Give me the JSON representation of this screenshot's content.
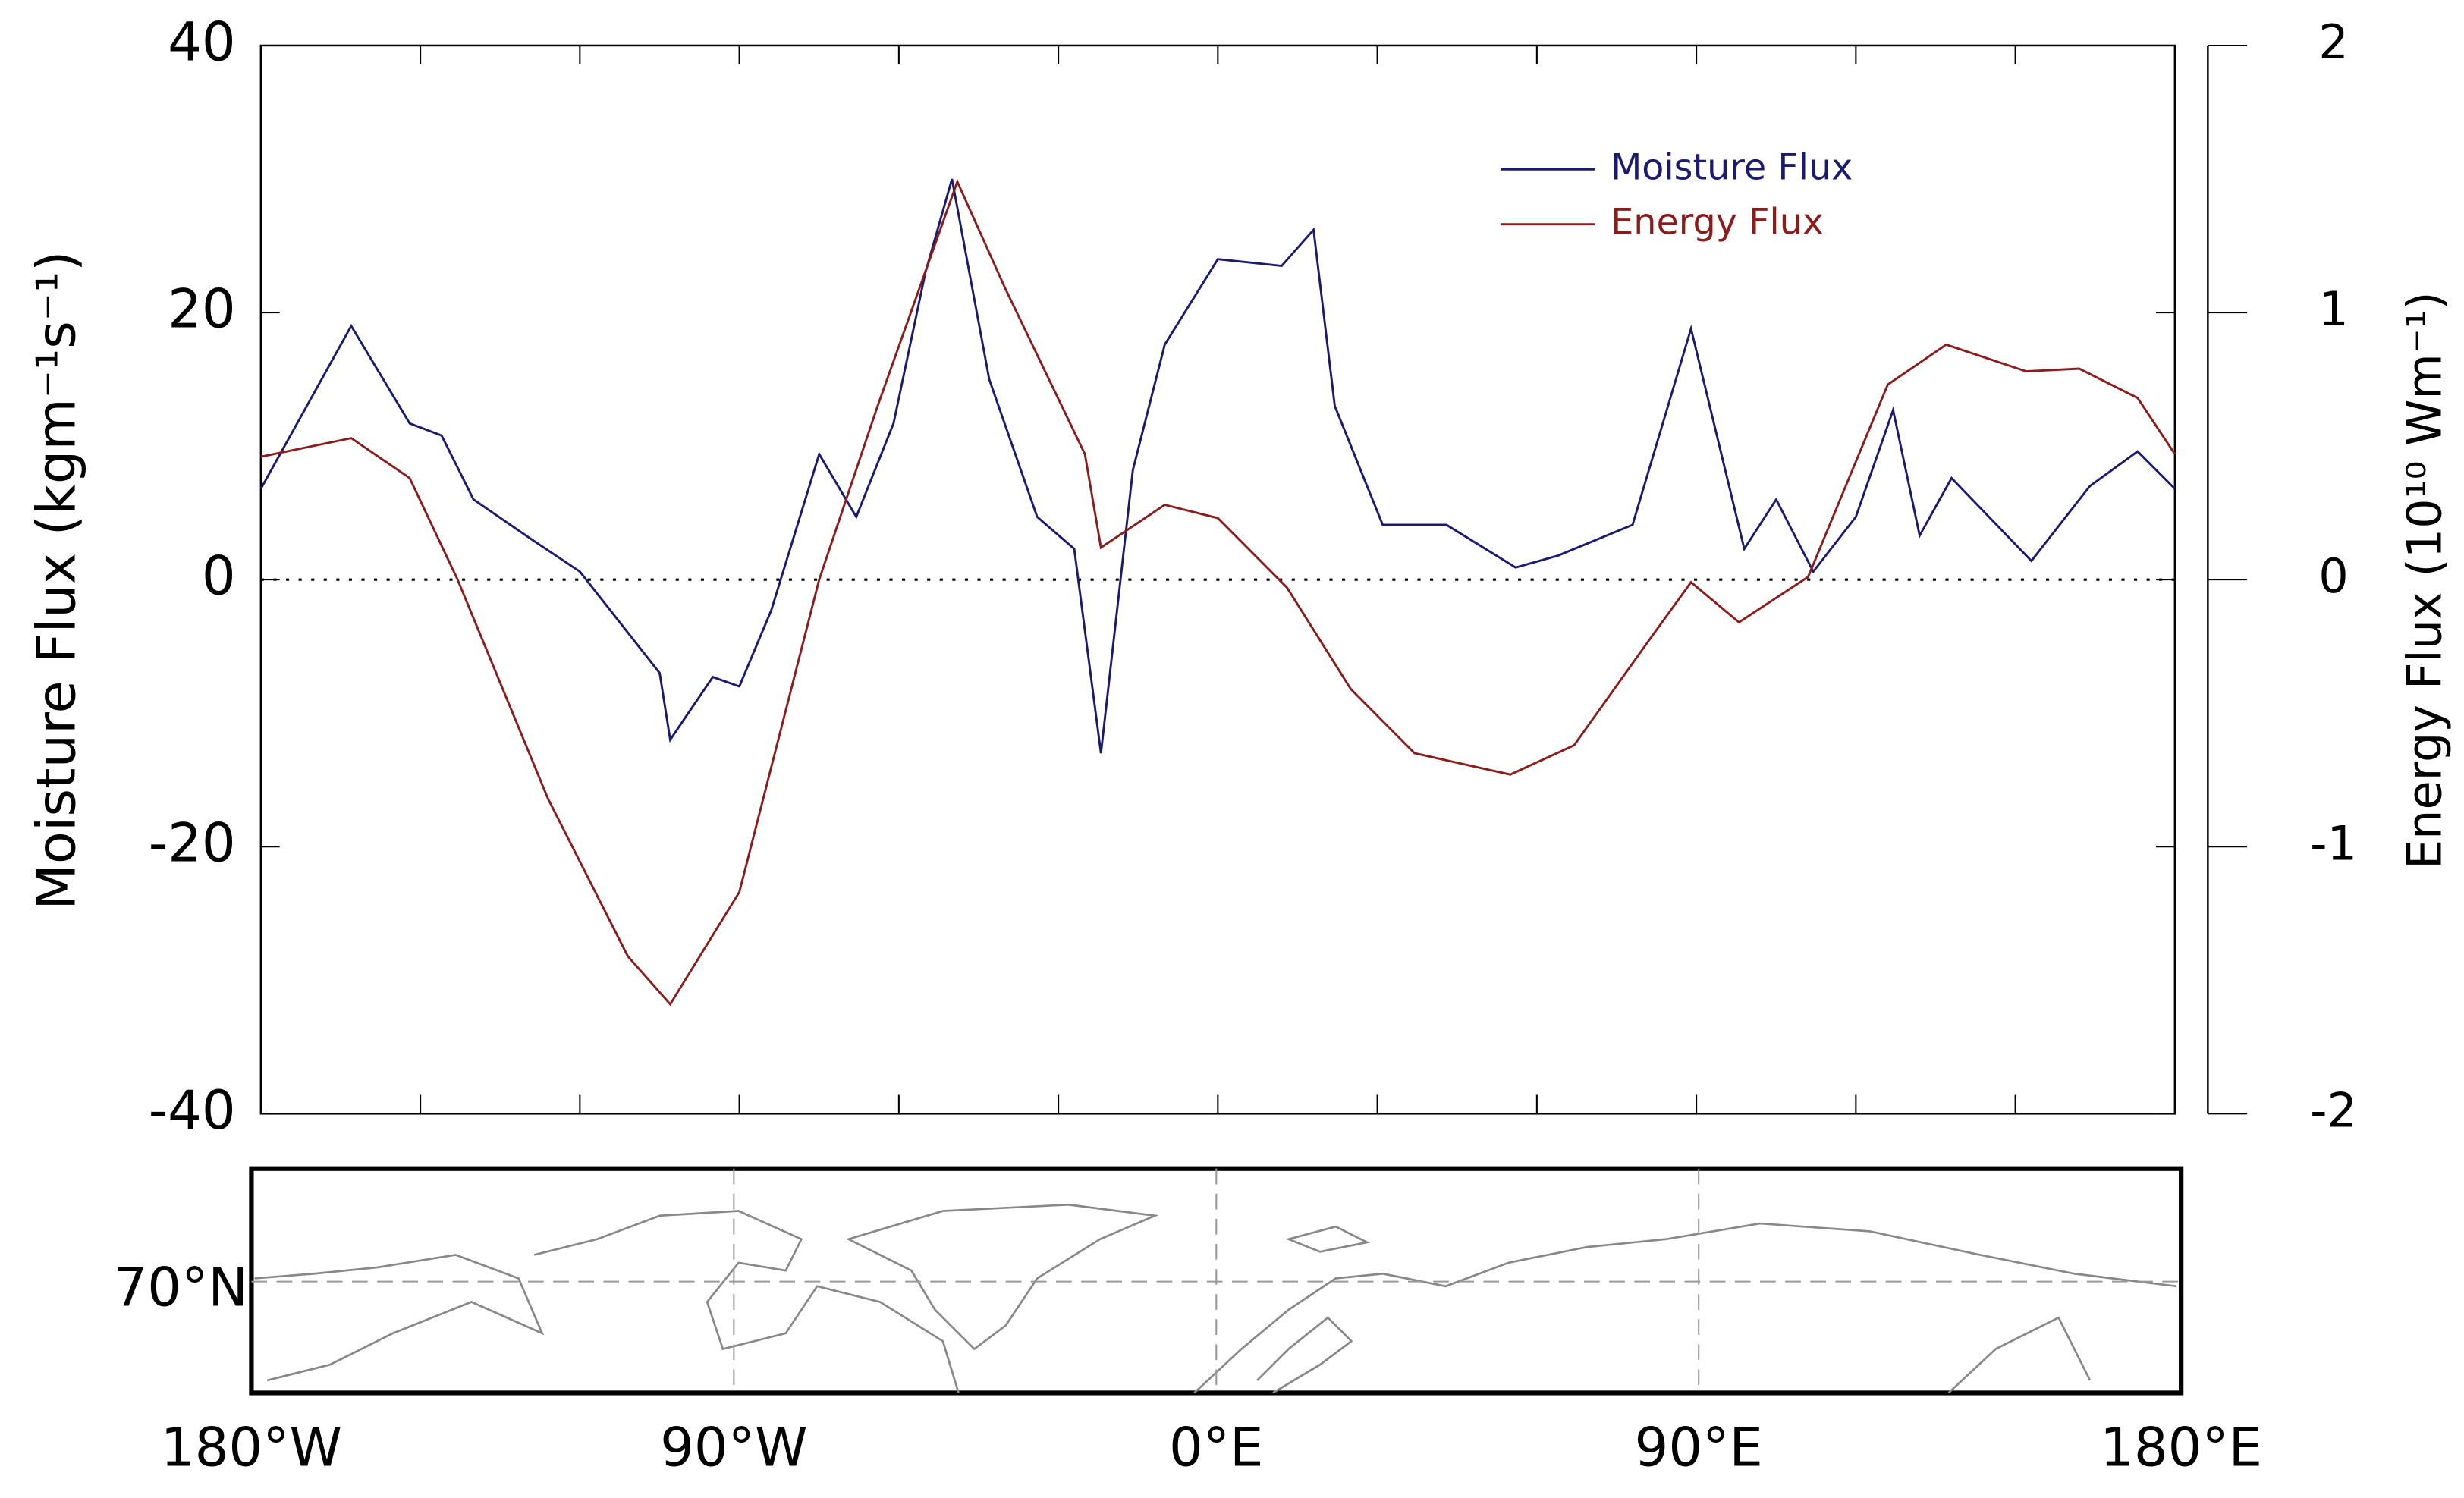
{
  "chart_data": {
    "type": "line",
    "ylabel": "Moisture Flux (kgm⁻¹s⁻¹)",
    "y2label": "Energy Flux (10¹⁰ Wm⁻¹)",
    "xlim": [
      -180,
      180
    ],
    "xticks": [
      {
        "value": -180,
        "label": "180°W"
      },
      {
        "value": -90,
        "label": "90°W"
      },
      {
        "value": 0,
        "label": "0°E"
      },
      {
        "value": 90,
        "label": "90°E"
      },
      {
        "value": 180,
        "label": "180°E"
      }
    ],
    "ylim": [
      -40,
      40
    ],
    "yticks": [
      40,
      20,
      0,
      -20,
      -40
    ],
    "y2lim": [
      -2,
      2
    ],
    "y2ticks": [
      2,
      1,
      0,
      -1,
      -2
    ],
    "map_label": "70°N",
    "legend": "upper right",
    "series": [
      {
        "name": "Moisture Flux",
        "color": "#1a1a70",
        "x": [
          -180,
          -163,
          -152,
          -146,
          -140,
          -129,
          -120,
          -105,
          -103,
          -95,
          -90,
          -84,
          -75,
          -68,
          -61,
          -55,
          -50,
          -43,
          -34,
          -27,
          -22,
          -16,
          -10,
          0,
          12,
          18,
          22,
          31,
          43,
          56,
          64,
          78,
          89,
          99,
          105,
          112,
          120,
          127,
          132,
          138,
          153,
          164,
          173,
          180
        ],
        "values": [
          6.8,
          19,
          11.7,
          10.8,
          6,
          3,
          0.6,
          -7,
          -12,
          -7.3,
          -8,
          -2.3,
          9.4,
          4.7,
          11.7,
          23,
          30,
          15,
          4.7,
          2.3,
          -13,
          8.2,
          17.6,
          24,
          23.5,
          26.2,
          13,
          4.1,
          4.1,
          0.9,
          1.8,
          4.1,
          18.8,
          2.3,
          6,
          0.6,
          4.7,
          12.7,
          3.3,
          7.6,
          1.4,
          7,
          9.6,
          6.8
        ]
      },
      {
        "name": "Energy Flux",
        "color": "#8b1c1c",
        "axis": "y2",
        "x": [
          -180,
          -163,
          -152,
          -143,
          -126,
          -111,
          -103,
          -90,
          -75,
          -64,
          -49,
          -40,
          -25,
          -22,
          -10,
          0,
          13,
          25,
          37,
          55,
          67,
          81,
          89,
          98,
          111,
          126,
          137,
          152,
          162,
          173,
          180
        ],
        "values": [
          0.46,
          0.53,
          0.38,
          0,
          -0.82,
          -1.41,
          -1.59,
          -1.17,
          0,
          0.65,
          1.49,
          1.09,
          0.47,
          0.12,
          0.28,
          0.23,
          -0.03,
          -0.41,
          -0.65,
          -0.73,
          -0.62,
          -0.23,
          -0.01,
          -0.16,
          0.01,
          0.73,
          0.88,
          0.78,
          0.79,
          0.68,
          0.47
        ]
      }
    ]
  }
}
